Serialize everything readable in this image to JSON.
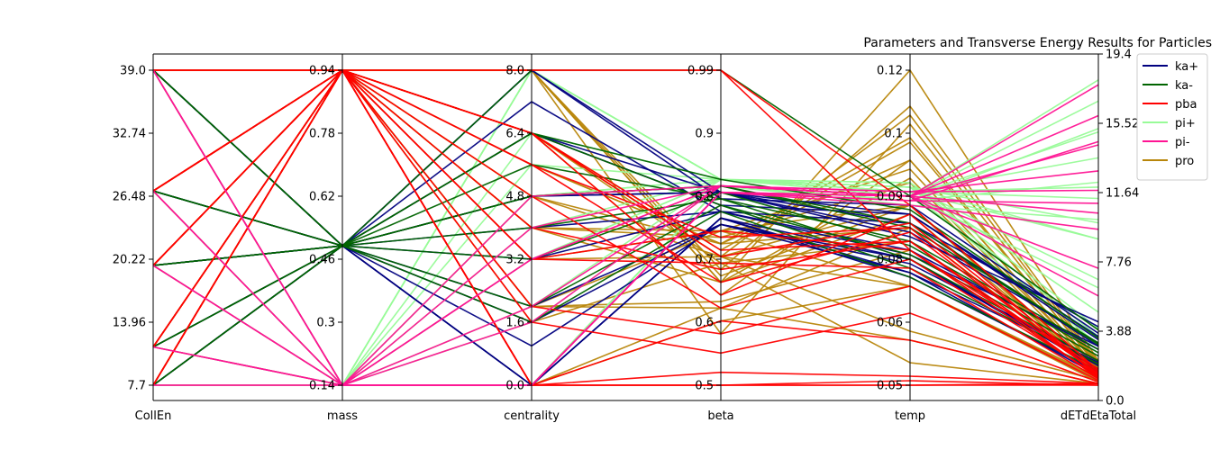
{
  "chart_data": {
    "type": "parallel_coordinates",
    "title": "Parameters and Transverse Energy Results for Particles",
    "axes": [
      {
        "name": "CollEn",
        "range": [
          7.7,
          39.0
        ],
        "ticks": [
          "7.7",
          "13.96",
          "20.22",
          "26.48",
          "32.74",
          "39.0"
        ]
      },
      {
        "name": "mass",
        "range": [
          0.14,
          0.94
        ],
        "ticks": [
          "0.14",
          "0.3",
          "0.46",
          "0.62",
          "0.78",
          "0.94"
        ]
      },
      {
        "name": "centrality",
        "range": [
          0.0,
          8.0
        ],
        "ticks": [
          "0.0",
          "1.6",
          "3.2",
          "4.8",
          "6.4",
          "8.0"
        ]
      },
      {
        "name": "beta",
        "range": [
          0.5,
          0.99
        ],
        "ticks": [
          "0.5",
          "0.6",
          "0.7",
          "0.8",
          "0.9",
          "0.99"
        ]
      },
      {
        "name": "temp",
        "range": [
          0.05,
          0.12
        ],
        "ticks": [
          "0.05",
          "0.06",
          "0.08",
          "0.09",
          "0.1",
          "0.12"
        ]
      },
      {
        "name": "dETdEtaTotal",
        "range": [
          0.0,
          19.4
        ],
        "ticks": [
          "0.0",
          "3.88",
          "7.76",
          "11.64",
          "15.52",
          "19.4"
        ]
      }
    ],
    "legend": {
      "position": "top-right",
      "items": [
        {
          "label": "ka+",
          "color": "#000080"
        },
        {
          "label": "ka-",
          "color": "#006400"
        },
        {
          "label": "pba",
          "color": "#ff0000"
        },
        {
          "label": "pi+",
          "color": "#98fb98"
        },
        {
          "label": "pi-",
          "color": "#ff1493"
        },
        {
          "label": "pro",
          "color": "#b8860b"
        }
      ]
    },
    "series": [
      {
        "name": "pro",
        "color": "#b8860b",
        "lines": [
          [
            39.0,
            0.94,
            8.0,
            0.66,
            0.12,
            1.5
          ],
          [
            39.0,
            0.94,
            6.4,
            0.7,
            0.11,
            1.3
          ],
          [
            39.0,
            0.94,
            5.6,
            0.72,
            0.105,
            1.1
          ],
          [
            39.0,
            0.94,
            4.0,
            0.74,
            0.098,
            0.9
          ],
          [
            39.0,
            0.94,
            2.0,
            0.62,
            0.085,
            0.6
          ],
          [
            39.0,
            0.94,
            0.0,
            0.6,
            0.072,
            0.2
          ],
          [
            27.0,
            0.94,
            8.0,
            0.68,
            0.112,
            1.4
          ],
          [
            27.0,
            0.94,
            6.4,
            0.71,
            0.104,
            1.2
          ],
          [
            27.0,
            0.94,
            5.6,
            0.72,
            0.1,
            1.0
          ],
          [
            27.0,
            0.94,
            4.0,
            0.73,
            0.095,
            0.8
          ],
          [
            27.0,
            0.94,
            3.2,
            0.74,
            0.09,
            0.6
          ],
          [
            19.6,
            0.94,
            8.0,
            0.58,
            0.108,
            1.2
          ],
          [
            19.6,
            0.94,
            6.4,
            0.64,
            0.1,
            1.0
          ],
          [
            19.6,
            0.94,
            4.0,
            0.66,
            0.088,
            0.8
          ],
          [
            19.6,
            0.94,
            2.0,
            0.63,
            0.08,
            0.5
          ],
          [
            11.5,
            0.94,
            8.0,
            0.66,
            0.096,
            1.0
          ],
          [
            11.5,
            0.94,
            6.4,
            0.7,
            0.09,
            0.9
          ],
          [
            11.5,
            0.94,
            4.8,
            0.72,
            0.085,
            0.7
          ],
          [
            11.5,
            0.94,
            2.0,
            0.74,
            0.072,
            0.4
          ],
          [
            11.5,
            0.94,
            0.0,
            0.62,
            0.06,
            0.1
          ],
          [
            7.7,
            0.94,
            8.0,
            0.67,
            0.09,
            0.8
          ],
          [
            7.7,
            0.94,
            6.4,
            0.69,
            0.082,
            0.7
          ],
          [
            7.7,
            0.94,
            4.8,
            0.7,
            0.072,
            0.5
          ],
          [
            7.7,
            0.94,
            3.2,
            0.7,
            0.062,
            0.3
          ],
          [
            7.7,
            0.94,
            1.6,
            0.69,
            0.055,
            0.1
          ]
        ]
      },
      {
        "name": "pi+",
        "color": "#98fb98",
        "lines": [
          [
            39.0,
            0.14,
            0.0,
            0.81,
            0.092,
            18.8
          ],
          [
            39.0,
            0.14,
            1.6,
            0.81,
            0.092,
            15.6
          ],
          [
            39.0,
            0.14,
            3.2,
            0.82,
            0.093,
            12.2
          ],
          [
            39.0,
            0.14,
            5.6,
            0.82,
            0.094,
            9.0
          ],
          [
            39.0,
            0.14,
            8.0,
            0.82,
            0.095,
            4.5
          ],
          [
            27.0,
            0.14,
            0.0,
            0.81,
            0.092,
            17.5
          ],
          [
            27.0,
            0.14,
            2.0,
            0.82,
            0.093,
            14.0
          ],
          [
            27.0,
            0.14,
            4.8,
            0.82,
            0.094,
            10.0
          ],
          [
            27.0,
            0.14,
            8.0,
            0.82,
            0.095,
            3.5
          ],
          [
            19.6,
            0.14,
            0.0,
            0.81,
            0.091,
            15.8
          ],
          [
            19.6,
            0.14,
            3.2,
            0.82,
            0.093,
            11.5
          ],
          [
            19.6,
            0.14,
            6.4,
            0.82,
            0.094,
            6.5
          ],
          [
            11.5,
            0.14,
            0.0,
            0.81,
            0.091,
            12.5
          ],
          [
            11.5,
            0.14,
            4.0,
            0.82,
            0.093,
            9.0
          ],
          [
            11.5,
            0.14,
            8.0,
            0.82,
            0.094,
            3.0
          ],
          [
            7.7,
            0.14,
            0.0,
            0.81,
            0.09,
            10.2
          ],
          [
            7.7,
            0.14,
            4.8,
            0.82,
            0.092,
            6.0
          ],
          [
            7.7,
            0.14,
            8.0,
            0.82,
            0.093,
            2.5
          ]
        ]
      },
      {
        "name": "ka+",
        "color": "#000080",
        "lines": [
          [
            39.0,
            0.494,
            8.0,
            0.79,
            0.09,
            3.2
          ],
          [
            39.0,
            0.494,
            6.4,
            0.78,
            0.088,
            2.8
          ],
          [
            39.0,
            0.494,
            4.8,
            0.8,
            0.086,
            2.4
          ],
          [
            39.0,
            0.494,
            0.0,
            0.76,
            0.078,
            1.2
          ],
          [
            27.0,
            0.494,
            7.2,
            0.77,
            0.086,
            3.6
          ],
          [
            27.0,
            0.494,
            4.8,
            0.8,
            0.084,
            2.6
          ],
          [
            27.0,
            0.494,
            1.0,
            0.75,
            0.077,
            1.5
          ],
          [
            19.6,
            0.494,
            6.4,
            0.8,
            0.083,
            3.9
          ],
          [
            19.6,
            0.494,
            3.2,
            0.77,
            0.08,
            2.2
          ],
          [
            19.6,
            0.494,
            0.0,
            0.76,
            0.074,
            0.8
          ],
          [
            11.5,
            0.494,
            4.0,
            0.77,
            0.079,
            2.4
          ],
          [
            11.5,
            0.494,
            2.0,
            0.75,
            0.075,
            1.4
          ],
          [
            7.7,
            0.494,
            8.0,
            0.8,
            0.088,
            3.0
          ],
          [
            7.7,
            0.494,
            1.6,
            0.75,
            0.078,
            1.0
          ],
          [
            7.7,
            0.494,
            0.0,
            0.76,
            0.075,
            0.6
          ]
        ]
      },
      {
        "name": "ka-",
        "color": "#006400",
        "lines": [
          [
            39.0,
            0.494,
            8.0,
            0.99,
            0.092,
            3.4
          ],
          [
            39.0,
            0.494,
            6.4,
            0.82,
            0.089,
            2.9
          ],
          [
            27.0,
            0.494,
            4.8,
            0.81,
            0.085,
            2.6
          ],
          [
            27.0,
            0.494,
            5.6,
            0.79,
            0.082,
            2.2
          ],
          [
            19.6,
            0.494,
            3.2,
            0.8,
            0.081,
            2.0
          ],
          [
            19.6,
            0.494,
            6.4,
            0.78,
            0.079,
            1.8
          ],
          [
            11.5,
            0.494,
            2.0,
            0.78,
            0.076,
            1.3
          ],
          [
            11.5,
            0.494,
            4.8,
            0.81,
            0.086,
            2.5
          ],
          [
            7.7,
            0.494,
            1.6,
            0.77,
            0.074,
            0.9
          ],
          [
            7.7,
            0.494,
            4.0,
            0.79,
            0.078,
            1.5
          ]
        ]
      },
      {
        "name": "pba",
        "color": "#ff0000",
        "lines": [
          [
            39.0,
            0.94,
            8.0,
            0.99,
            0.08,
            1.0
          ],
          [
            39.0,
            0.94,
            6.4,
            0.7,
            0.086,
            0.8
          ],
          [
            39.0,
            0.94,
            0.0,
            0.5,
            0.05,
            0.1
          ],
          [
            27.0,
            0.94,
            8.0,
            0.99,
            0.09,
            0.9
          ],
          [
            27.0,
            0.94,
            5.6,
            0.66,
            0.084,
            0.7
          ],
          [
            27.0,
            0.94,
            3.2,
            0.74,
            0.08,
            0.5
          ],
          [
            27.0,
            0.94,
            0.0,
            0.52,
            0.052,
            0.1
          ],
          [
            19.6,
            0.94,
            4.8,
            0.62,
            0.078,
            0.6
          ],
          [
            19.6,
            0.94,
            6.4,
            0.71,
            0.082,
            0.7
          ],
          [
            19.6,
            0.94,
            2.0,
            0.58,
            0.072,
            0.3
          ],
          [
            19.6,
            0.94,
            0.0,
            0.5,
            0.05,
            0.0
          ],
          [
            11.5,
            0.94,
            3.2,
            0.69,
            0.076,
            0.4
          ],
          [
            11.5,
            0.94,
            5.6,
            0.73,
            0.085,
            0.6
          ],
          [
            11.5,
            0.94,
            0.0,
            0.6,
            0.06,
            0.1
          ],
          [
            7.7,
            0.94,
            6.4,
            0.64,
            0.088,
            0.5
          ],
          [
            7.7,
            0.94,
            4.0,
            0.68,
            0.082,
            0.4
          ],
          [
            7.7,
            0.94,
            1.6,
            0.55,
            0.066,
            0.2
          ],
          [
            7.7,
            0.94,
            0.0,
            0.5,
            0.051,
            0.0
          ]
        ]
      },
      {
        "name": "pi-",
        "color": "#ff1493",
        "lines": [
          [
            39.0,
            0.14,
            0.0,
            0.8,
            0.092,
            18.5
          ],
          [
            39.0,
            0.14,
            1.6,
            0.81,
            0.092,
            14.8
          ],
          [
            39.0,
            0.14,
            3.2,
            0.81,
            0.093,
            13.2
          ],
          [
            27.0,
            0.14,
            0.0,
            0.8,
            0.092,
            16.6
          ],
          [
            27.0,
            0.14,
            2.0,
            0.81,
            0.093,
            12.0
          ],
          [
            19.6,
            0.14,
            0.0,
            0.8,
            0.091,
            15.0
          ],
          [
            19.6,
            0.14,
            3.2,
            0.81,
            0.092,
            10.6
          ],
          [
            11.5,
            0.14,
            0.0,
            0.8,
            0.091,
            11.2
          ],
          [
            11.5,
            0.14,
            4.0,
            0.81,
            0.092,
            7.2
          ],
          [
            7.7,
            0.14,
            0.0,
            0.8,
            0.09,
            9.6
          ],
          [
            7.7,
            0.14,
            4.8,
            0.81,
            0.092,
            5.5
          ]
        ]
      }
    ]
  }
}
